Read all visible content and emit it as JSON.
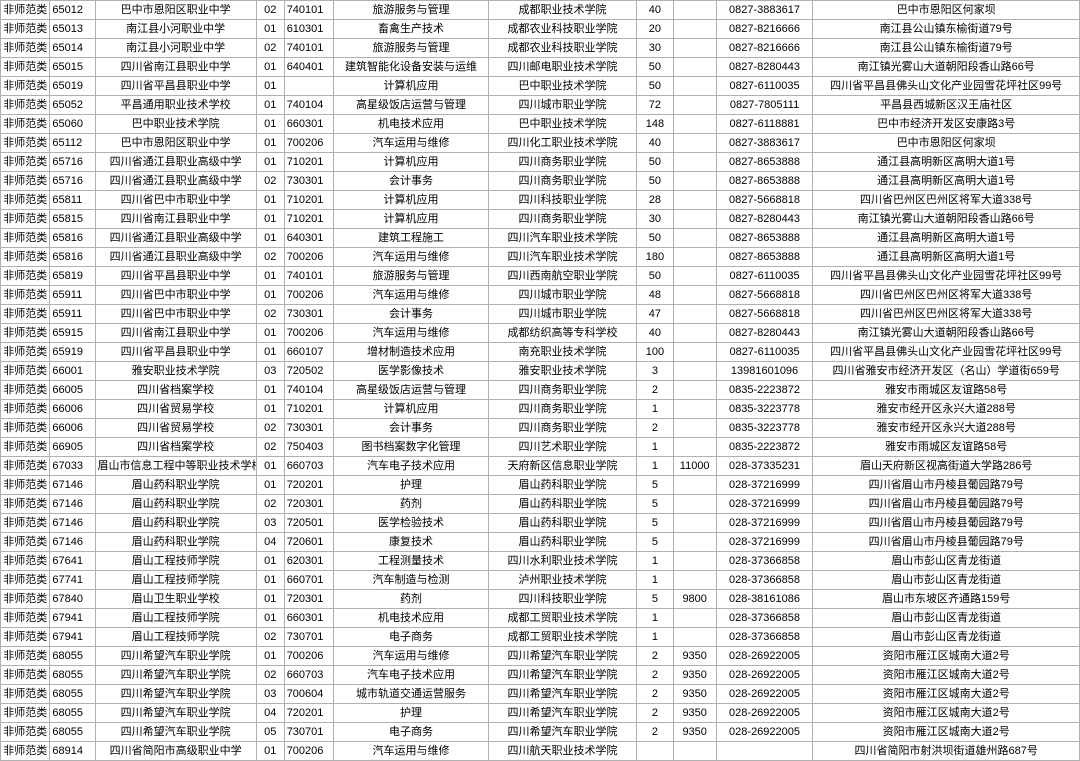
{
  "columns": [
    {
      "cls": "c0"
    },
    {
      "cls": "c1"
    },
    {
      "cls": "c2"
    },
    {
      "cls": "c3"
    },
    {
      "cls": "c4"
    },
    {
      "cls": "c5"
    },
    {
      "cls": "c6"
    },
    {
      "cls": "c7"
    },
    {
      "cls": "c8"
    },
    {
      "cls": "c9"
    },
    {
      "cls": "c10"
    }
  ],
  "rows": [
    [
      "非师范类",
      "65012",
      "巴中市恩阳区职业中学",
      "02",
      "740101",
      "旅游服务与管理",
      "成都职业技术学院",
      "40",
      "",
      "0827-3883617",
      "巴中市恩阳区何家坝"
    ],
    [
      "非师范类",
      "65013",
      "南江县小河职业中学",
      "01",
      "610301",
      "畜禽生产技术",
      "成都农业科技职业学院",
      "20",
      "",
      "0827-8216666",
      "南江县公山镇东榆街道79号"
    ],
    [
      "非师范类",
      "65014",
      "南江县小河职业中学",
      "02",
      "740101",
      "旅游服务与管理",
      "成都农业科技职业学院",
      "30",
      "",
      "0827-8216666",
      "南江县公山镇东榆街道79号"
    ],
    [
      "非师范类",
      "65015",
      "四川省南江县职业中学",
      "01",
      "640401",
      "建筑智能化设备安装与运维",
      "四川邮电职业技术学院",
      "50",
      "",
      "0827-8280443",
      "南江镇光雾山大道朝阳段香山路66号"
    ],
    [
      "非师范类",
      "65019",
      "四川省平昌县职业中学",
      "01",
      "",
      "计算机应用",
      "巴中职业技术学院",
      "50",
      "",
      "0827-6110035",
      "四川省平昌县佛头山文化产业园雪花坪社区99号"
    ],
    [
      "非师范类",
      "65052",
      "平昌通用职业技术学校",
      "01",
      "740104",
      "高星级饭店运营与管理",
      "四川城市职业学院",
      "72",
      "",
      "0827-7805111",
      "平昌县西城新区汉王庙社区"
    ],
    [
      "非师范类",
      "65060",
      "巴中职业技术学院",
      "01",
      "660301",
      "机电技术应用",
      "巴中职业技术学院",
      "148",
      "",
      "0827-6118881",
      "巴中市经济开发区安康路3号"
    ],
    [
      "非师范类",
      "65112",
      "巴中市恩阳区职业中学",
      "01",
      "700206",
      "汽车运用与维修",
      "四川化工职业技术学院",
      "40",
      "",
      "0827-3883617",
      "巴中市恩阳区何家坝"
    ],
    [
      "非师范类",
      "65716",
      "四川省通江县职业高级中学",
      "01",
      "710201",
      "计算机应用",
      "四川商务职业学院",
      "50",
      "",
      "0827-8653888",
      "通江县高明新区高明大道1号"
    ],
    [
      "非师范类",
      "65716",
      "四川省通江县职业高级中学",
      "02",
      "730301",
      "会计事务",
      "四川商务职业学院",
      "50",
      "",
      "0827-8653888",
      "通江县高明新区高明大道1号"
    ],
    [
      "非师范类",
      "65811",
      "四川省巴中市职业中学",
      "01",
      "710201",
      "计算机应用",
      "四川科技职业学院",
      "28",
      "",
      "0827-5668818",
      "四川省巴州区巴州区将军大道338号"
    ],
    [
      "非师范类",
      "65815",
      "四川省南江县职业中学",
      "01",
      "710201",
      "计算机应用",
      "四川商务职业学院",
      "30",
      "",
      "0827-8280443",
      "南江镇光雾山大道朝阳段香山路66号"
    ],
    [
      "非师范类",
      "65816",
      "四川省通江县职业高级中学",
      "01",
      "640301",
      "建筑工程施工",
      "四川汽车职业技术学院",
      "50",
      "",
      "0827-8653888",
      "通江县高明新区高明大道1号"
    ],
    [
      "非师范类",
      "65816",
      "四川省通江县职业高级中学",
      "02",
      "700206",
      "汽车运用与维修",
      "四川汽车职业技术学院",
      "180",
      "",
      "0827-8653888",
      "通江县高明新区高明大道1号"
    ],
    [
      "非师范类",
      "65819",
      "四川省平昌县职业中学",
      "01",
      "740101",
      "旅游服务与管理",
      "四川西南航空职业学院",
      "50",
      "",
      "0827-6110035",
      "四川省平昌县佛头山文化产业园雪花坪社区99号"
    ],
    [
      "非师范类",
      "65911",
      "四川省巴中市职业中学",
      "01",
      "700206",
      "汽车运用与维修",
      "四川城市职业学院",
      "48",
      "",
      "0827-5668818",
      "四川省巴州区巴州区将军大道338号"
    ],
    [
      "非师范类",
      "65911",
      "四川省巴中市职业中学",
      "02",
      "730301",
      "会计事务",
      "四川城市职业学院",
      "47",
      "",
      "0827-5668818",
      "四川省巴州区巴州区将军大道338号"
    ],
    [
      "非师范类",
      "65915",
      "四川省南江县职业中学",
      "01",
      "700206",
      "汽车运用与维修",
      "成都纺织高等专科学校",
      "40",
      "",
      "0827-8280443",
      "南江镇光雾山大道朝阳段香山路66号"
    ],
    [
      "非师范类",
      "65919",
      "四川省平昌县职业中学",
      "01",
      "660107",
      "增材制造技术应用",
      "南充职业技术学院",
      "100",
      "",
      "0827-6110035",
      "四川省平昌县佛头山文化产业园雪花坪社区99号"
    ],
    [
      "非师范类",
      "66001",
      "雅安职业技术学院",
      "03",
      "720502",
      "医学影像技术",
      "雅安职业技术学院",
      "3",
      "",
      "13981601096",
      "四川省雅安市经济开发区（名山）学道街659号"
    ],
    [
      "非师范类",
      "66005",
      "四川省档案学校",
      "01",
      "740104",
      "高星级饭店运营与管理",
      "四川商务职业学院",
      "2",
      "",
      "0835-2223872",
      "雅安市雨城区友谊路58号"
    ],
    [
      "非师范类",
      "66006",
      "四川省贸易学校",
      "01",
      "710201",
      "计算机应用",
      "四川商务职业学院",
      "1",
      "",
      "0835-3223778",
      "雅安市经开区永兴大道288号"
    ],
    [
      "非师范类",
      "66006",
      "四川省贸易学校",
      "02",
      "730301",
      "会计事务",
      "四川商务职业学院",
      "2",
      "",
      "0835-3223778",
      "雅安市经开区永兴大道288号"
    ],
    [
      "非师范类",
      "66905",
      "四川省档案学校",
      "02",
      "750403",
      "图书档案数字化管理",
      "四川艺术职业学院",
      "1",
      "",
      "0835-2223872",
      "雅安市雨城区友谊路58号"
    ],
    [
      "非师范类",
      "67033",
      "眉山市信息工程中等职业技术学校",
      "01",
      "660703",
      "汽车电子技术应用",
      "天府新区信息职业学院",
      "1",
      "11000",
      "028-37335231",
      "眉山天府新区视高街道大学路286号"
    ],
    [
      "非师范类",
      "67146",
      "眉山药科职业学院",
      "01",
      "720201",
      "护理",
      "眉山药科职业学院",
      "5",
      "",
      "028-37216999",
      "四川省眉山市丹棱县葡园路79号"
    ],
    [
      "非师范类",
      "67146",
      "眉山药科职业学院",
      "02",
      "720301",
      "药剂",
      "眉山药科职业学院",
      "5",
      "",
      "028-37216999",
      "四川省眉山市丹棱县葡园路79号"
    ],
    [
      "非师范类",
      "67146",
      "眉山药科职业学院",
      "03",
      "720501",
      "医学检验技术",
      "眉山药科职业学院",
      "5",
      "",
      "028-37216999",
      "四川省眉山市丹棱县葡园路79号"
    ],
    [
      "非师范类",
      "67146",
      "眉山药科职业学院",
      "04",
      "720601",
      "康复技术",
      "眉山药科职业学院",
      "5",
      "",
      "028-37216999",
      "四川省眉山市丹棱县葡园路79号"
    ],
    [
      "非师范类",
      "67641",
      "眉山工程技师学院",
      "01",
      "620301",
      "工程测量技术",
      "四川水利职业技术学院",
      "1",
      "",
      "028-37366858",
      "眉山市彭山区青龙街道"
    ],
    [
      "非师范类",
      "67741",
      "眉山工程技师学院",
      "01",
      "660701",
      "汽车制造与检测",
      "泸州职业技术学院",
      "1",
      "",
      "028-37366858",
      "眉山市彭山区青龙街道"
    ],
    [
      "非师范类",
      "67840",
      "眉山卫生职业学校",
      "01",
      "720301",
      "药剂",
      "四川科技职业学院",
      "5",
      "9800",
      "028-38161086",
      "眉山市东坡区齐通路159号"
    ],
    [
      "非师范类",
      "67941",
      "眉山工程技师学院",
      "01",
      "660301",
      "机电技术应用",
      "成都工贸职业技术学院",
      "1",
      "",
      "028-37366858",
      "眉山市彭山区青龙街道"
    ],
    [
      "非师范类",
      "67941",
      "眉山工程技师学院",
      "02",
      "730701",
      "电子商务",
      "成都工贸职业技术学院",
      "1",
      "",
      "028-37366858",
      "眉山市彭山区青龙街道"
    ],
    [
      "非师范类",
      "68055",
      "四川希望汽车职业学院",
      "01",
      "700206",
      "汽车运用与维修",
      "四川希望汽车职业学院",
      "2",
      "9350",
      "028-26922005",
      "资阳市雁江区城南大道2号"
    ],
    [
      "非师范类",
      "68055",
      "四川希望汽车职业学院",
      "02",
      "660703",
      "汽车电子技术应用",
      "四川希望汽车职业学院",
      "2",
      "9350",
      "028-26922005",
      "资阳市雁江区城南大道2号"
    ],
    [
      "非师范类",
      "68055",
      "四川希望汽车职业学院",
      "03",
      "700604",
      "城市轨道交通运营服务",
      "四川希望汽车职业学院",
      "2",
      "9350",
      "028-26922005",
      "资阳市雁江区城南大道2号"
    ],
    [
      "非师范类",
      "68055",
      "四川希望汽车职业学院",
      "04",
      "720201",
      "护理",
      "四川希望汽车职业学院",
      "2",
      "9350",
      "028-26922005",
      "资阳市雁江区城南大道2号"
    ],
    [
      "非师范类",
      "68055",
      "四川希望汽车职业学院",
      "05",
      "730701",
      "电子商务",
      "四川希望汽车职业学院",
      "2",
      "9350",
      "028-26922005",
      "资阳市雁江区城南大道2号"
    ],
    [
      "非师范类",
      "68914",
      "四川省简阳市高级职业中学",
      "01",
      "700206",
      "汽车运用与维修",
      "四川航天职业技术学院",
      "",
      "",
      "",
      "四川省简阳市射洪坝街道雄州路687号"
    ]
  ]
}
